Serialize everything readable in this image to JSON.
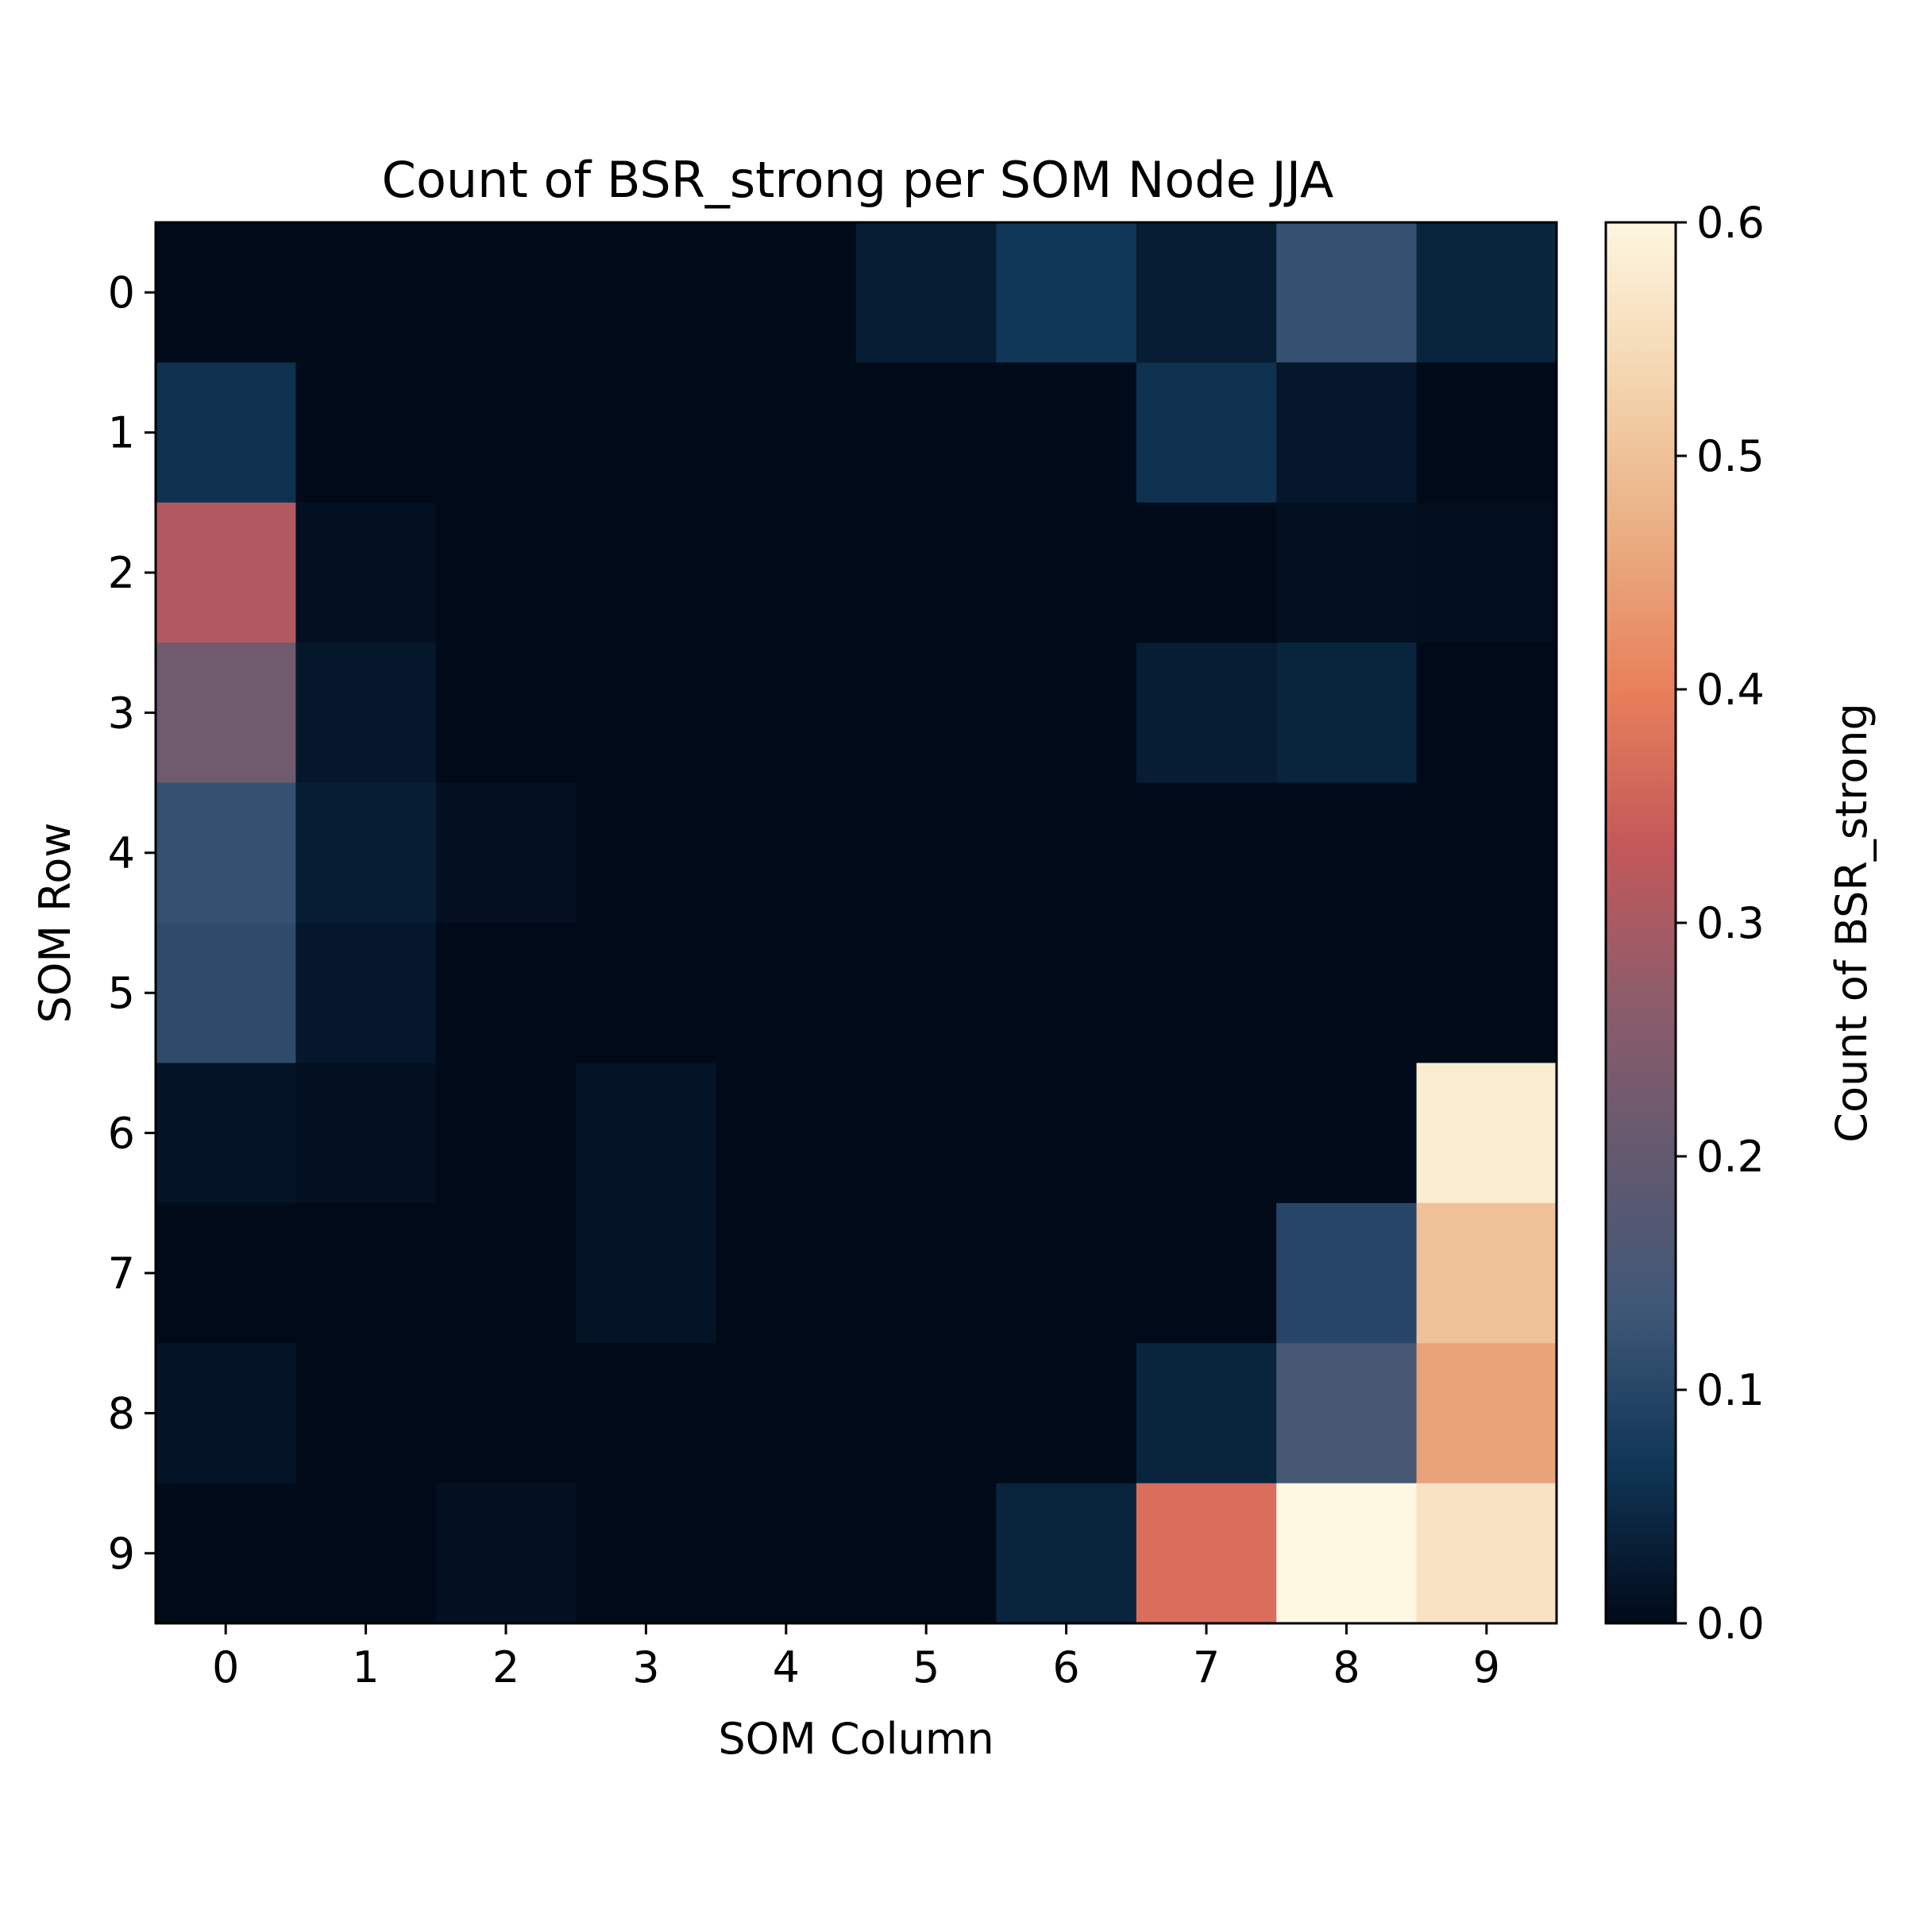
{
  "chart_data": {
    "type": "heatmap",
    "title": "Count of BSR_strong per SOM Node JJA",
    "xlabel": "SOM Column",
    "ylabel": "SOM Row",
    "x_ticks": [
      "0",
      "1",
      "2",
      "3",
      "4",
      "5",
      "6",
      "7",
      "8",
      "9"
    ],
    "y_ticks": [
      "0",
      "1",
      "2",
      "3",
      "4",
      "5",
      "6",
      "7",
      "8",
      "9"
    ],
    "colorbar": {
      "label": "Count of BSR_strong",
      "range": [
        0.0,
        0.6
      ],
      "ticks": [
        "0.0",
        "0.1",
        "0.2",
        "0.3",
        "0.4",
        "0.5",
        "0.6"
      ],
      "tick_values": [
        0.0,
        0.1,
        0.2,
        0.3,
        0.4,
        0.5,
        0.6
      ]
    },
    "colormap": [
      "#010a18",
      "#0f3556",
      "#3e5777",
      "#63596f",
      "#8d5c6b",
      "#c4585a",
      "#e8805b",
      "#eaae82",
      "#f4d5af",
      "#fdf6e0"
    ],
    "values": [
      [
        0.0,
        0.0,
        0.0,
        0.0,
        0.0,
        0.03,
        0.07,
        0.03,
        0.12,
        0.04
      ],
      [
        0.06,
        0.0,
        0.0,
        0.0,
        0.0,
        0.0,
        0.0,
        0.06,
        0.02,
        0.0
      ],
      [
        0.31,
        0.01,
        0.0,
        0.0,
        0.0,
        0.0,
        0.0,
        0.0,
        0.01,
        0.005
      ],
      [
        0.22,
        0.02,
        0.0,
        0.0,
        0.0,
        0.0,
        0.0,
        0.03,
        0.04,
        0.0
      ],
      [
        0.12,
        0.03,
        0.01,
        0.0,
        0.0,
        0.0,
        0.0,
        0.0,
        0.0,
        0.0
      ],
      [
        0.11,
        0.02,
        0.0,
        0.0,
        0.0,
        0.0,
        0.0,
        0.0,
        0.0,
        0.0
      ],
      [
        0.015,
        0.01,
        0.0,
        0.015,
        0.0,
        0.0,
        0.0,
        0.0,
        0.0,
        0.58
      ],
      [
        0.0,
        0.0,
        0.0,
        0.015,
        0.0,
        0.0,
        0.0,
        0.0,
        0.1,
        0.5
      ],
      [
        0.015,
        0.0,
        0.0,
        0.0,
        0.0,
        0.0,
        0.0,
        0.04,
        0.15,
        0.45
      ],
      [
        0.0,
        0.0,
        0.01,
        0.0,
        0.0,
        0.0,
        0.04,
        0.37,
        0.6,
        0.56
      ]
    ]
  }
}
